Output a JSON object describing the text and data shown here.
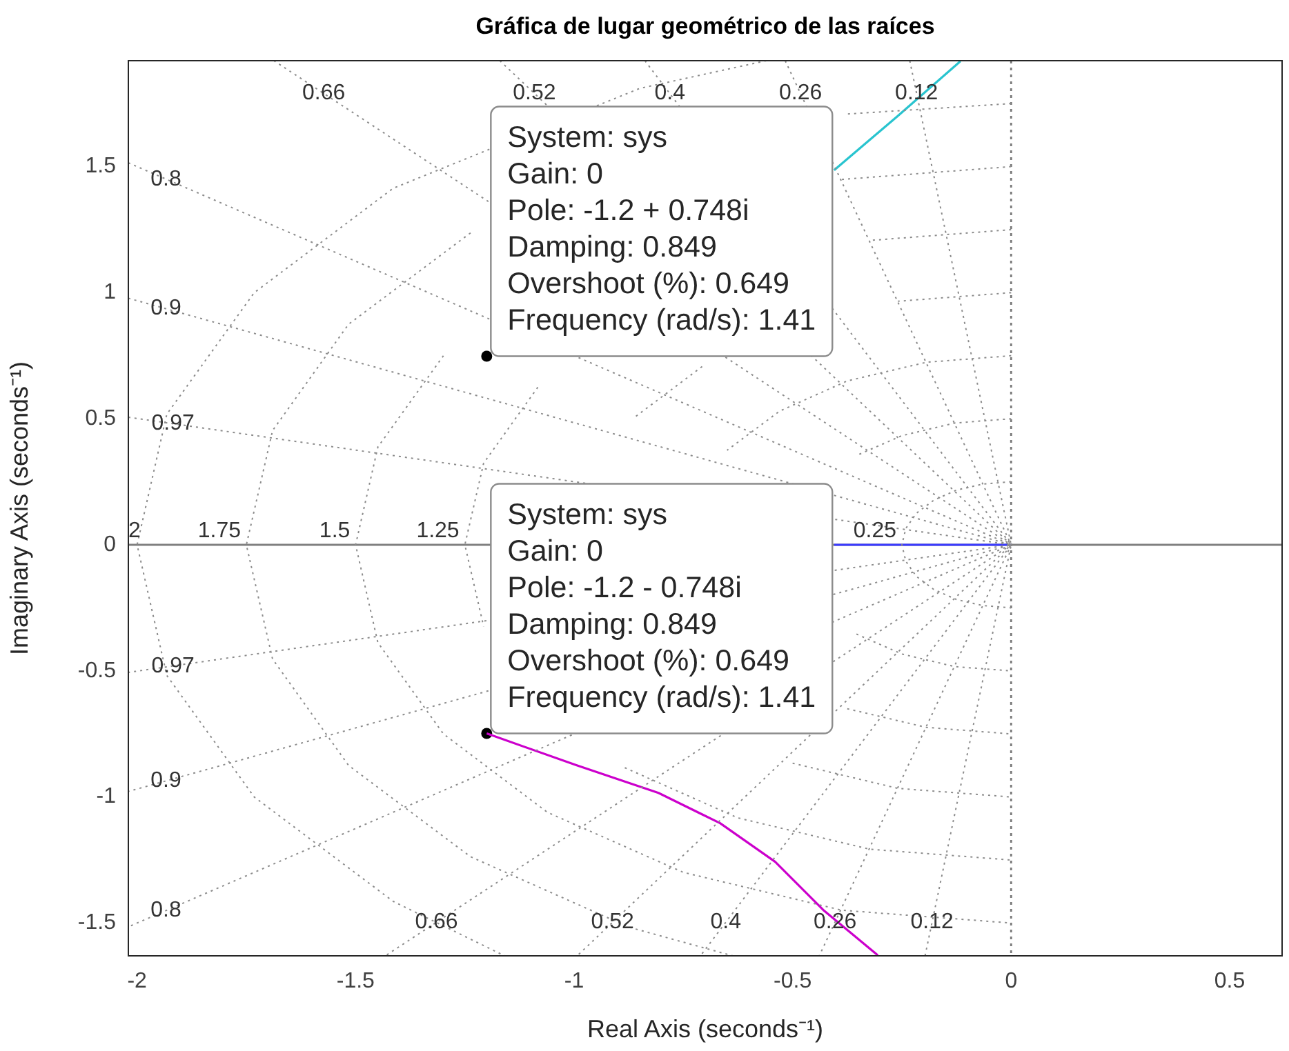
{
  "chart_data": {
    "type": "line",
    "title": "Gráfica de lugar geométrico de las raíces",
    "xlabel": "Real Axis (seconds⁻¹)",
    "ylabel": "Imaginary Axis (seconds⁻¹)",
    "xlim": [
      -2.02,
      0.62
    ],
    "ylim": [
      -1.63,
      1.92
    ],
    "xticks": [
      -2,
      -1.5,
      -1,
      -0.5,
      0,
      0.5
    ],
    "yticks": [
      -1.5,
      -1,
      -0.5,
      0,
      0.5,
      1,
      1.5
    ],
    "grid": false,
    "legend": false,
    "series": [
      {
        "color": "#8c8c8c",
        "line_style": "dotted",
        "x": [
          0,
          -0.065,
          -0.125,
          -0.177,
          -0.217,
          -0.241,
          -0.25,
          -0.241,
          -0.217,
          -0.177,
          -0.125,
          -0.065,
          0
        ],
        "values": [
          0.25,
          0.241,
          0.217,
          0.177,
          0.125,
          0.065,
          0,
          -0.065,
          -0.125,
          -0.177,
          -0.217,
          -0.241,
          -0.25
        ]
      },
      {
        "color": "#8c8c8c",
        "line_style": "dotted",
        "x": [
          0,
          -0.129,
          -0.25,
          -0.354,
          null,
          -0.354,
          -0.25,
          -0.129,
          0
        ],
        "values": [
          0.5,
          0.483,
          0.433,
          0.354,
          null,
          -0.354,
          -0.433,
          -0.483,
          -0.5
        ]
      },
      {
        "color": "#8c8c8c",
        "line_style": "dotted",
        "x": [
          0,
          -0.194,
          -0.375,
          -0.53,
          -0.65,
          null,
          -0.375,
          -0.194,
          0
        ],
        "values": [
          0.75,
          0.724,
          0.65,
          0.53,
          0.375,
          null,
          -0.65,
          -0.724,
          -0.75
        ]
      },
      {
        "color": "#8c8c8c",
        "line_style": "dotted",
        "x": [
          0,
          -0.259,
          null,
          -0.707,
          -0.866,
          null,
          -0.5,
          -0.259,
          0
        ],
        "values": [
          1,
          0.966,
          null,
          0.707,
          0.5,
          null,
          -0.866,
          -0.966,
          -1
        ]
      },
      {
        "color": "#8c8c8c",
        "line_style": "dotted",
        "x": [
          0,
          -0.324,
          null,
          -1.083,
          -1.207,
          -1.25,
          -1.207,
          null,
          -0.884,
          -0.625,
          -0.324,
          0
        ],
        "values": [
          1.25,
          1.207,
          null,
          0.625,
          0.324,
          0,
          -0.324,
          null,
          -0.884,
          -1.083,
          -1.207,
          -1.25
        ]
      },
      {
        "color": "#8c8c8c",
        "line_style": "dotted",
        "x": [
          0,
          -0.388,
          null,
          -1.299,
          -1.449,
          -1.5,
          -1.449,
          -1.299,
          -1.061,
          -0.75,
          -0.388,
          0
        ],
        "values": [
          1.5,
          1.449,
          null,
          0.75,
          0.388,
          0,
          -0.388,
          -0.75,
          -1.061,
          -1.299,
          -1.449,
          -1.5
        ]
      },
      {
        "color": "#8c8c8c",
        "line_style": "dotted",
        "x": [
          0,
          -0.38,
          null,
          -1.237,
          -1.516,
          -1.69,
          -1.75,
          -1.69,
          -1.516,
          -1.237,
          -0.875,
          -0.637
        ],
        "values": [
          1.75,
          1.708,
          null,
          1.237,
          0.875,
          0.453,
          0,
          -0.453,
          -0.875,
          -1.237,
          -1.516,
          -1.63
        ]
      },
      {
        "color": "#8c8c8c",
        "line_style": "dotted",
        "x": [
          -0.56,
          -0.85,
          -1.414,
          -1.732,
          -1.932,
          -2,
          -1.932,
          -1.732,
          -1.414,
          -1.159
        ],
        "values": [
          1.92,
          1.81,
          1.414,
          1,
          0.518,
          0,
          -0.518,
          -1,
          -1.414,
          -1.63
        ]
      },
      {
        "color": "#8c8c8c",
        "line_style": "dotted",
        "x": [
          -0.232,
          0,
          -0.197
        ],
        "values": [
          1.92,
          0,
          -1.63
        ]
      },
      {
        "color": "#8c8c8c",
        "line_style": "dotted",
        "x": [
          -0.517,
          0,
          -0.439
        ],
        "values": [
          1.92,
          0,
          -1.63
        ]
      },
      {
        "color": "#8c8c8c",
        "line_style": "dotted",
        "x": [
          -0.838,
          0,
          -0.711
        ],
        "values": [
          1.92,
          0,
          -1.63
        ]
      },
      {
        "color": "#8c8c8c",
        "line_style": "dotted",
        "x": [
          -1.17,
          0,
          -0.993
        ],
        "values": [
          1.92,
          0,
          -1.63
        ]
      },
      {
        "color": "#8c8c8c",
        "line_style": "dotted",
        "x": [
          -1.687,
          0,
          -1.432
        ],
        "values": [
          1.92,
          0,
          -1.63
        ]
      },
      {
        "color": "#8c8c8c",
        "line_style": "dotted",
        "x": [
          -2.02,
          0,
          -2.02
        ],
        "values": [
          1.515,
          0,
          -1.515
        ]
      },
      {
        "color": "#8c8c8c",
        "line_style": "dotted",
        "x": [
          -2.02,
          0,
          -2.02
        ],
        "values": [
          0.978,
          0,
          -0.978
        ]
      },
      {
        "color": "#8c8c8c",
        "line_style": "dotted",
        "x": [
          -2.02,
          0,
          -2.02
        ],
        "values": [
          0.506,
          0,
          -0.506
        ]
      },
      {
        "color": "#29c4cf",
        "x": [
          -0.405,
          -0.26,
          -0.116
        ],
        "values": [
          1.486,
          1.7,
          1.918
        ]
      },
      {
        "color": "#cc00cc",
        "x": [
          -1.2,
          -0.995,
          -0.807,
          -0.666,
          -0.54,
          -0.43,
          -0.305
        ],
        "values": [
          -0.748,
          -0.874,
          -0.984,
          -1.104,
          -1.257,
          -1.448,
          -1.628
        ]
      },
      {
        "color": "#3b3bff",
        "x": [
          -0.405,
          0
        ],
        "values": [
          0,
          0
        ]
      },
      {
        "type": "scatter",
        "color": "#000000",
        "x": [
          -1.2,
          -1.2
        ],
        "values": [
          0.748,
          -0.748
        ]
      }
    ],
    "ref_lines": [
      {
        "axis": "y",
        "value": 0,
        "color": "#808080",
        "line_style": "solid"
      },
      {
        "axis": "x",
        "value": 0,
        "color": "#808080",
        "line_style": "dotted"
      }
    ],
    "annotations": [
      {
        "text": "0.66",
        "x": -1.573,
        "y": 1.79
      },
      {
        "text": "0.52",
        "x": -1.091,
        "y": 1.79
      },
      {
        "text": "0.4",
        "x": -0.781,
        "y": 1.79
      },
      {
        "text": "0.26",
        "x": -0.482,
        "y": 1.79
      },
      {
        "text": "0.12",
        "x": -0.2165,
        "y": 1.79
      },
      {
        "text": "0.8",
        "x": -1.934,
        "y": 1.45
      },
      {
        "text": "0.9",
        "x": -1.934,
        "y": 0.937
      },
      {
        "text": "0.97",
        "x": -1.918,
        "y": 0.481
      },
      {
        "text": "0.97",
        "x": -1.918,
        "y": -0.481
      },
      {
        "text": "0.9",
        "x": -1.934,
        "y": -0.937
      },
      {
        "text": "0.8",
        "x": -1.934,
        "y": -1.45
      },
      {
        "text": "0.66",
        "x": -1.315,
        "y": -1.497
      },
      {
        "text": "0.52",
        "x": -0.912,
        "y": -1.497
      },
      {
        "text": "0.4",
        "x": -0.653,
        "y": -1.497
      },
      {
        "text": "0.26",
        "x": -0.403,
        "y": -1.497
      },
      {
        "text": "0.12",
        "x": -0.181,
        "y": -1.497
      },
      {
        "text": "2",
        "x": -2,
        "y": 0
      },
      {
        "text": "1.75",
        "x": -1.75,
        "y": 0
      },
      {
        "text": "1.5",
        "x": -1.5,
        "y": 0
      },
      {
        "text": "1.25",
        "x": -1.25,
        "y": 0
      },
      {
        "text": "0.25",
        "x": -0.25,
        "y": 0
      },
      {
        "text": "System: sys\nGain: 0\nPole: -1.2 + 0.748i\nDamping: 0.849\nOvershoot (%): 0.649\nFrequency (rad/s): 1.41",
        "x": -1.2,
        "y": 0.748
      },
      {
        "text": "System: sys\nGain: 0\nPole: -1.2 - 0.748i\nDamping: 0.849\nOvershoot (%): 0.649\nFrequency (rad/s): 1.41",
        "x": -1.2,
        "y": -0.748
      }
    ]
  }
}
